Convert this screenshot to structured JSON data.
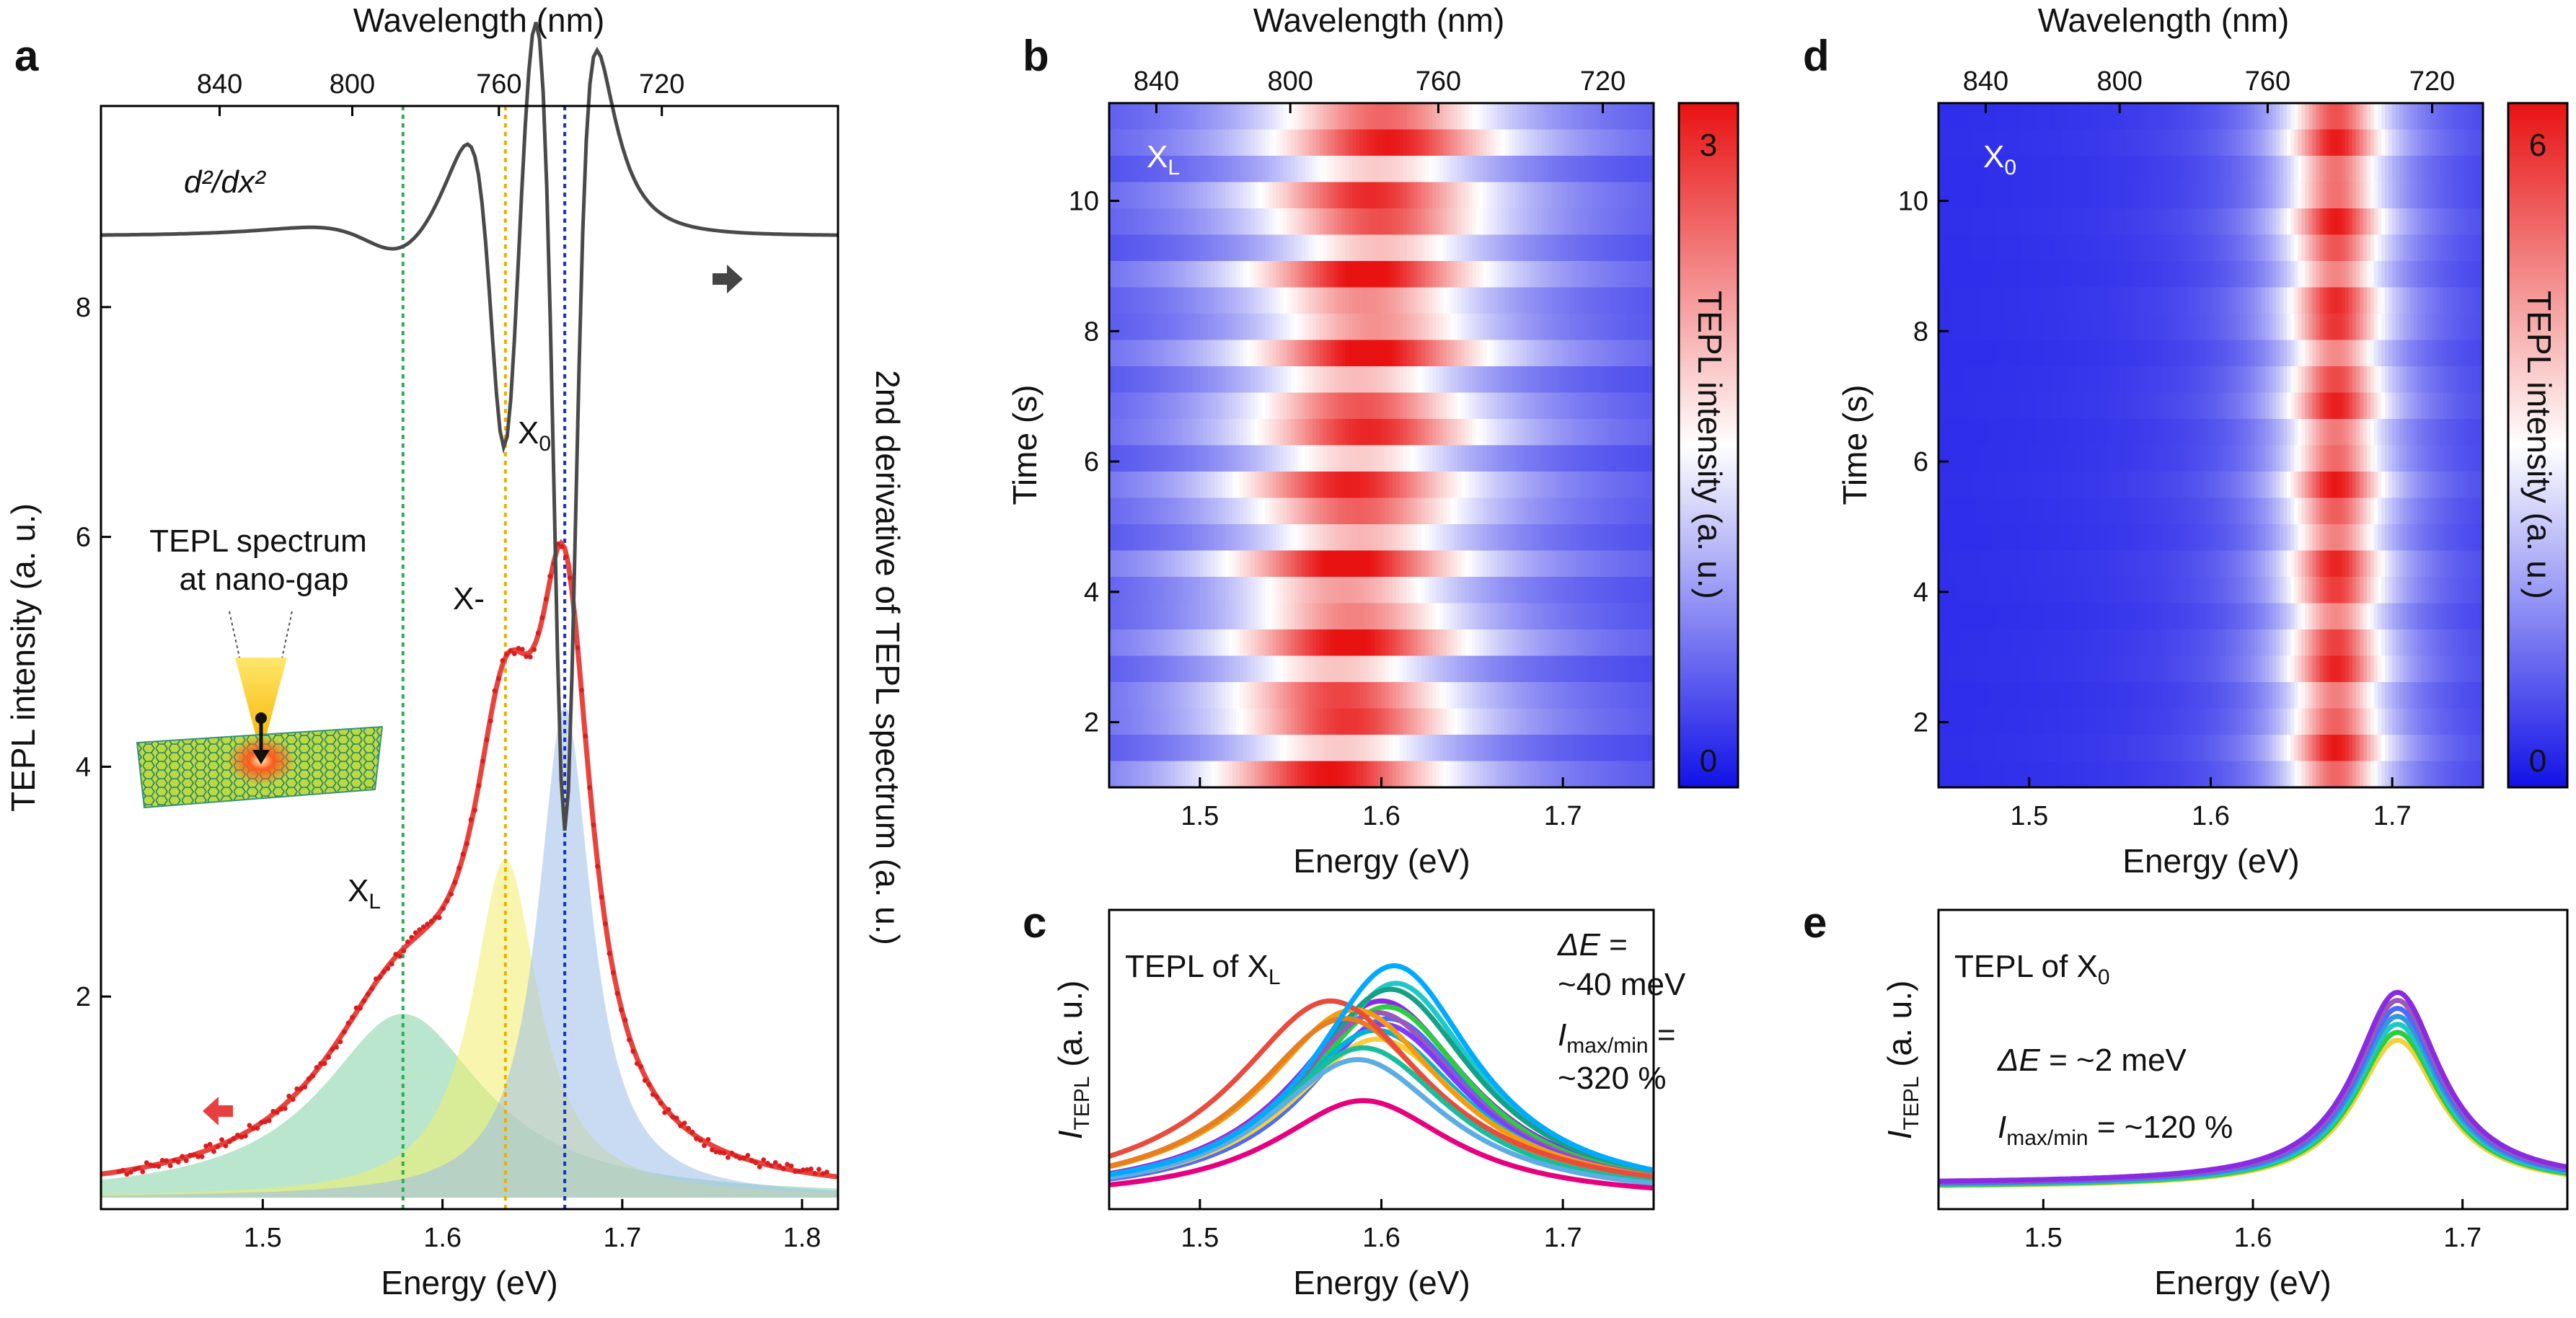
{
  "chart_data": [
    {
      "panel": "a",
      "type": "line",
      "xlabel": "Energy (eV)",
      "ylabel": "TEPL intensity (a. u.)",
      "ylabel_right": "2nd derivative of TEPL spectrum (a. u.)",
      "top_xlabel": "Wavelength (nm)",
      "xlim": [
        1.41,
        1.82
      ],
      "ylim": [
        0.15,
        9.75
      ],
      "xticks": [
        1.5,
        1.6,
        1.7,
        1.8
      ],
      "yticks": [
        2,
        4,
        6,
        8
      ],
      "top_ticks": [
        840,
        800,
        760,
        720
      ],
      "derivative_label": "d²/dx²",
      "inset_label": [
        "TEPL spectrum",
        "at nano-gap"
      ],
      "peaks": [
        {
          "name": "XL",
          "label": "X",
          "sub": "L",
          "center": 1.578,
          "amp": 1.6,
          "fwhm": 0.11,
          "color": "#7fd1a4",
          "line": "#33aa55"
        },
        {
          "name": "X-",
          "label": "X-",
          "sub": "",
          "center": 1.635,
          "amp": 2.95,
          "fwhm": 0.045,
          "color": "#f3ee6b",
          "line": "#e8b000"
        },
        {
          "name": "X0",
          "label": "X",
          "sub": "0",
          "center": 1.668,
          "amp": 4.28,
          "fwhm": 0.036,
          "color": "#9dbde9",
          "line": "#1a2fd0"
        }
      ]
    },
    {
      "panel": "b",
      "type": "heatmap",
      "label": "XL",
      "xlabel": "Energy (eV)",
      "ylabel": "Time (s)",
      "top_xlabel": "Wavelength (nm)",
      "colorbar_label": "TEPL intensity (a. u.)",
      "clim": [
        0,
        3
      ],
      "xlim": [
        1.45,
        1.75
      ],
      "ylim": [
        1,
        11.5
      ],
      "xticks": [
        1.5,
        1.6,
        1.7
      ],
      "yticks": [
        2,
        4,
        6,
        8,
        10
      ],
      "top_ticks": [
        840,
        800,
        760,
        720
      ]
    },
    {
      "panel": "c",
      "type": "line",
      "title": "TEPL of XL",
      "xlabel": "Energy (eV)",
      "ylabel": "ITEPL (a. u.)",
      "xlim": [
        1.45,
        1.75
      ],
      "xticks": [
        1.5,
        1.6,
        1.7
      ],
      "delta_e": "~40 meV",
      "i_ratio": "~320 %"
    },
    {
      "panel": "d",
      "type": "heatmap",
      "label": "X0",
      "xlabel": "Energy (eV)",
      "ylabel": "Time (s)",
      "top_xlabel": "Wavelength (nm)",
      "colorbar_label": "TEPL intensity (a. u.)",
      "clim": [
        0,
        6
      ],
      "xlim": [
        1.45,
        1.75
      ],
      "ylim": [
        1,
        11.5
      ],
      "xticks": [
        1.5,
        1.6,
        1.7
      ],
      "yticks": [
        2,
        4,
        6,
        8,
        10
      ],
      "top_ticks": [
        840,
        800,
        760,
        720
      ]
    },
    {
      "panel": "e",
      "type": "line",
      "title": "TEPL of X0",
      "xlabel": "Energy (eV)",
      "ylabel": "ITEPL (a. u.)",
      "xlim": [
        1.45,
        1.75
      ],
      "xticks": [
        1.5,
        1.6,
        1.7
      ],
      "delta_e": "~2 meV",
      "i_ratio": "~120 %"
    }
  ]
}
